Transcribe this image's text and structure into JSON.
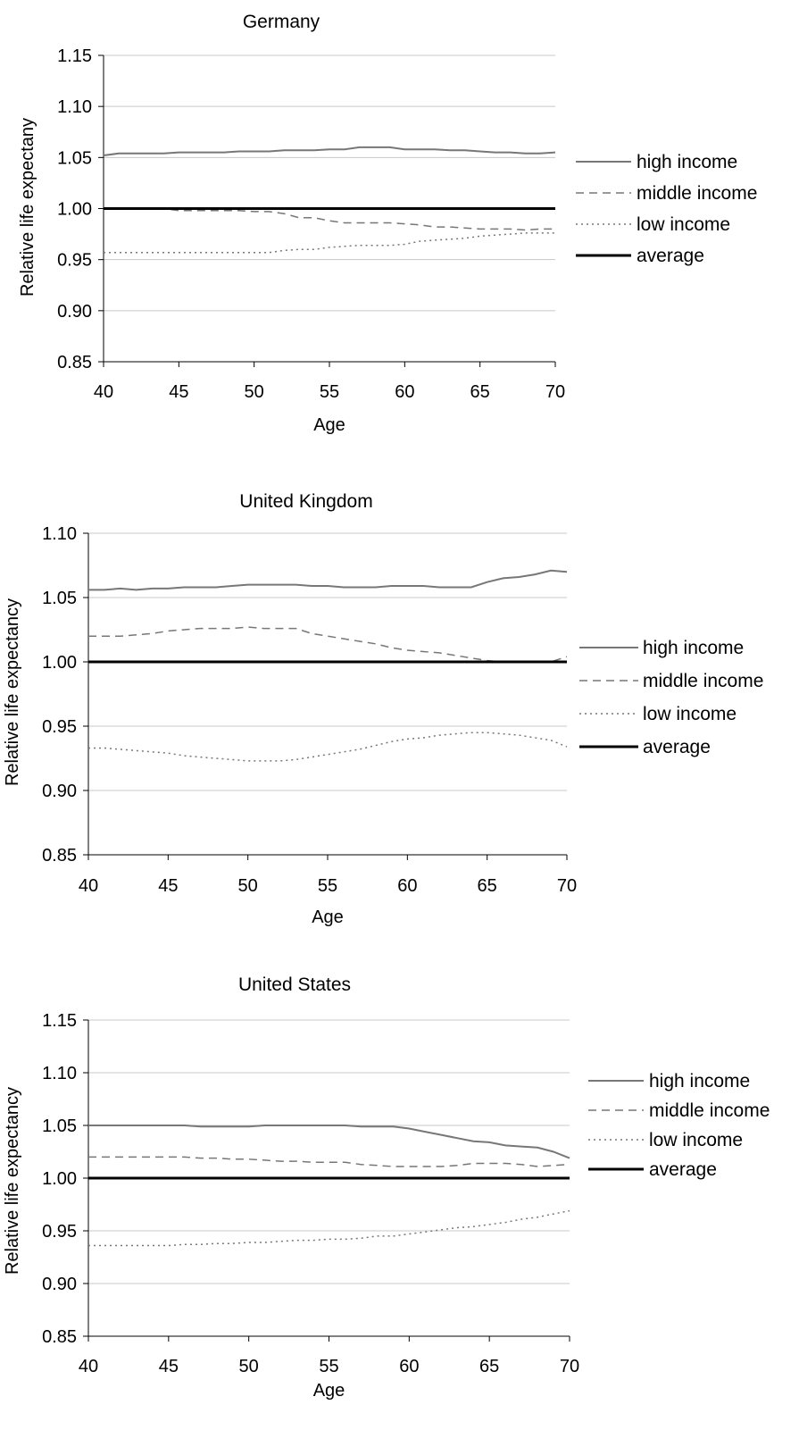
{
  "chart_data": [
    {
      "type": "line",
      "title": "Germany",
      "xlabel": "Age",
      "ylabel": "Relative life expectany",
      "xlim": [
        40,
        70
      ],
      "ylim": [
        0.85,
        1.15
      ],
      "x_ticks": [
        40,
        45,
        50,
        55,
        60,
        65,
        70
      ],
      "y_ticks": [
        "0.85",
        "0.90",
        "0.95",
        "1.00",
        "1.05",
        "1.10",
        "1.15"
      ],
      "grid": true,
      "legend_position": "right",
      "x": [
        40,
        41,
        42,
        43,
        44,
        45,
        46,
        47,
        48,
        49,
        50,
        51,
        52,
        53,
        54,
        55,
        56,
        57,
        58,
        59,
        60,
        61,
        62,
        63,
        64,
        65,
        66,
        67,
        68,
        69,
        70
      ],
      "series": [
        {
          "name": "high income",
          "style": "solid",
          "color": "#777777",
          "values": [
            1.052,
            1.054,
            1.054,
            1.054,
            1.054,
            1.055,
            1.055,
            1.055,
            1.055,
            1.056,
            1.056,
            1.056,
            1.057,
            1.057,
            1.057,
            1.058,
            1.058,
            1.06,
            1.06,
            1.06,
            1.058,
            1.058,
            1.058,
            1.057,
            1.057,
            1.056,
            1.055,
            1.055,
            1.054,
            1.054,
            1.055
          ]
        },
        {
          "name": "middle income",
          "style": "dashed",
          "color": "#777777",
          "values": [
            1.0,
            1.0,
            1.0,
            1.0,
            1.0,
            0.998,
            0.998,
            0.998,
            0.998,
            0.998,
            0.997,
            0.997,
            0.995,
            0.991,
            0.991,
            0.988,
            0.986,
            0.986,
            0.986,
            0.986,
            0.985,
            0.984,
            0.982,
            0.982,
            0.981,
            0.98,
            0.98,
            0.98,
            0.979,
            0.98,
            0.98
          ]
        },
        {
          "name": "low income",
          "style": "dotted",
          "color": "#777777",
          "values": [
            0.957,
            0.957,
            0.957,
            0.957,
            0.957,
            0.957,
            0.957,
            0.957,
            0.957,
            0.957,
            0.957,
            0.957,
            0.959,
            0.96,
            0.96,
            0.962,
            0.963,
            0.964,
            0.964,
            0.964,
            0.965,
            0.968,
            0.969,
            0.97,
            0.971,
            0.973,
            0.974,
            0.975,
            0.976,
            0.976,
            0.976
          ]
        },
        {
          "name": "average",
          "style": "thick",
          "color": "#000000",
          "values": [
            1.0,
            1.0,
            1.0,
            1.0,
            1.0,
            1.0,
            1.0,
            1.0,
            1.0,
            1.0,
            1.0,
            1.0,
            1.0,
            1.0,
            1.0,
            1.0,
            1.0,
            1.0,
            1.0,
            1.0,
            1.0,
            1.0,
            1.0,
            1.0,
            1.0,
            1.0,
            1.0,
            1.0,
            1.0,
            1.0,
            1.0
          ]
        }
      ]
    },
    {
      "type": "line",
      "title": "United Kingdom",
      "xlabel": "Age",
      "ylabel": "Relative life expectancy",
      "xlim": [
        40,
        70
      ],
      "ylim": [
        0.85,
        1.1
      ],
      "x_ticks": [
        40,
        45,
        50,
        55,
        60,
        65,
        70
      ],
      "y_ticks": [
        "0.85",
        "0.90",
        "0.95",
        "1.00",
        "1.05",
        "1.10"
      ],
      "grid": true,
      "legend_position": "right",
      "x": [
        40,
        41,
        42,
        43,
        44,
        45,
        46,
        47,
        48,
        49,
        50,
        51,
        52,
        53,
        54,
        55,
        56,
        57,
        58,
        59,
        60,
        61,
        62,
        63,
        64,
        65,
        66,
        67,
        68,
        69,
        70
      ],
      "series": [
        {
          "name": "high income",
          "style": "solid",
          "color": "#777777",
          "values": [
            1.056,
            1.056,
            1.057,
            1.056,
            1.057,
            1.057,
            1.058,
            1.058,
            1.058,
            1.059,
            1.06,
            1.06,
            1.06,
            1.06,
            1.059,
            1.059,
            1.058,
            1.058,
            1.058,
            1.059,
            1.059,
            1.059,
            1.058,
            1.058,
            1.058,
            1.062,
            1.065,
            1.066,
            1.068,
            1.071,
            1.07
          ]
        },
        {
          "name": "middle income",
          "style": "dashed",
          "color": "#777777",
          "values": [
            1.02,
            1.02,
            1.02,
            1.021,
            1.022,
            1.024,
            1.025,
            1.026,
            1.026,
            1.026,
            1.027,
            1.026,
            1.026,
            1.026,
            1.022,
            1.02,
            1.018,
            1.016,
            1.014,
            1.011,
            1.009,
            1.008,
            1.007,
            1.005,
            1.003,
            1.001,
            1.0,
            1.0,
            1.0,
            1.0,
            1.004
          ]
        },
        {
          "name": "low income",
          "style": "dotted",
          "color": "#777777",
          "values": [
            0.933,
            0.933,
            0.932,
            0.931,
            0.93,
            0.929,
            0.927,
            0.926,
            0.925,
            0.924,
            0.923,
            0.923,
            0.923,
            0.924,
            0.926,
            0.928,
            0.93,
            0.932,
            0.935,
            0.938,
            0.94,
            0.941,
            0.943,
            0.944,
            0.945,
            0.945,
            0.944,
            0.943,
            0.941,
            0.939,
            0.934
          ]
        },
        {
          "name": "average",
          "style": "thick",
          "color": "#000000",
          "values": [
            1.0,
            1.0,
            1.0,
            1.0,
            1.0,
            1.0,
            1.0,
            1.0,
            1.0,
            1.0,
            1.0,
            1.0,
            1.0,
            1.0,
            1.0,
            1.0,
            1.0,
            1.0,
            1.0,
            1.0,
            1.0,
            1.0,
            1.0,
            1.0,
            1.0,
            1.0,
            1.0,
            1.0,
            1.0,
            1.0,
            1.0
          ]
        }
      ]
    },
    {
      "type": "line",
      "title": "United States",
      "xlabel": "Age",
      "ylabel": "Relative life expectancy",
      "xlim": [
        40,
        70
      ],
      "ylim": [
        0.85,
        1.15
      ],
      "x_ticks": [
        40,
        45,
        50,
        55,
        60,
        65,
        70
      ],
      "y_ticks": [
        "0.85",
        "0.90",
        "0.95",
        "1.00",
        "1.05",
        "1.10",
        "1.15"
      ],
      "grid": true,
      "legend_position": "right",
      "x": [
        40,
        41,
        42,
        43,
        44,
        45,
        46,
        47,
        48,
        49,
        50,
        51,
        52,
        53,
        54,
        55,
        56,
        57,
        58,
        59,
        60,
        61,
        62,
        63,
        64,
        65,
        66,
        67,
        68,
        69,
        70
      ],
      "series": [
        {
          "name": "high income",
          "style": "solid",
          "color": "#777777",
          "values": [
            1.05,
            1.05,
            1.05,
            1.05,
            1.05,
            1.05,
            1.05,
            1.049,
            1.049,
            1.049,
            1.049,
            1.05,
            1.05,
            1.05,
            1.05,
            1.05,
            1.05,
            1.049,
            1.049,
            1.049,
            1.047,
            1.044,
            1.041,
            1.038,
            1.035,
            1.034,
            1.031,
            1.03,
            1.029,
            1.025,
            1.019
          ]
        },
        {
          "name": "middle income",
          "style": "dashed",
          "color": "#777777",
          "values": [
            1.02,
            1.02,
            1.02,
            1.02,
            1.02,
            1.02,
            1.02,
            1.019,
            1.019,
            1.018,
            1.018,
            1.017,
            1.016,
            1.016,
            1.015,
            1.015,
            1.015,
            1.013,
            1.012,
            1.011,
            1.011,
            1.011,
            1.011,
            1.012,
            1.014,
            1.014,
            1.014,
            1.013,
            1.011,
            1.012,
            1.013
          ]
        },
        {
          "name": "low income",
          "style": "dotted",
          "color": "#777777",
          "values": [
            0.936,
            0.936,
            0.936,
            0.936,
            0.936,
            0.936,
            0.937,
            0.937,
            0.938,
            0.938,
            0.939,
            0.939,
            0.94,
            0.941,
            0.941,
            0.942,
            0.942,
            0.943,
            0.945,
            0.945,
            0.947,
            0.949,
            0.951,
            0.953,
            0.954,
            0.956,
            0.958,
            0.961,
            0.963,
            0.966,
            0.969
          ]
        },
        {
          "name": "average",
          "style": "thick",
          "color": "#000000",
          "values": [
            1.0,
            1.0,
            1.0,
            1.0,
            1.0,
            1.0,
            1.0,
            1.0,
            1.0,
            1.0,
            1.0,
            1.0,
            1.0,
            1.0,
            1.0,
            1.0,
            1.0,
            1.0,
            1.0,
            1.0,
            1.0,
            1.0,
            1.0,
            1.0,
            1.0,
            1.0,
            1.0,
            1.0,
            1.0,
            1.0,
            1.0
          ]
        }
      ]
    }
  ]
}
